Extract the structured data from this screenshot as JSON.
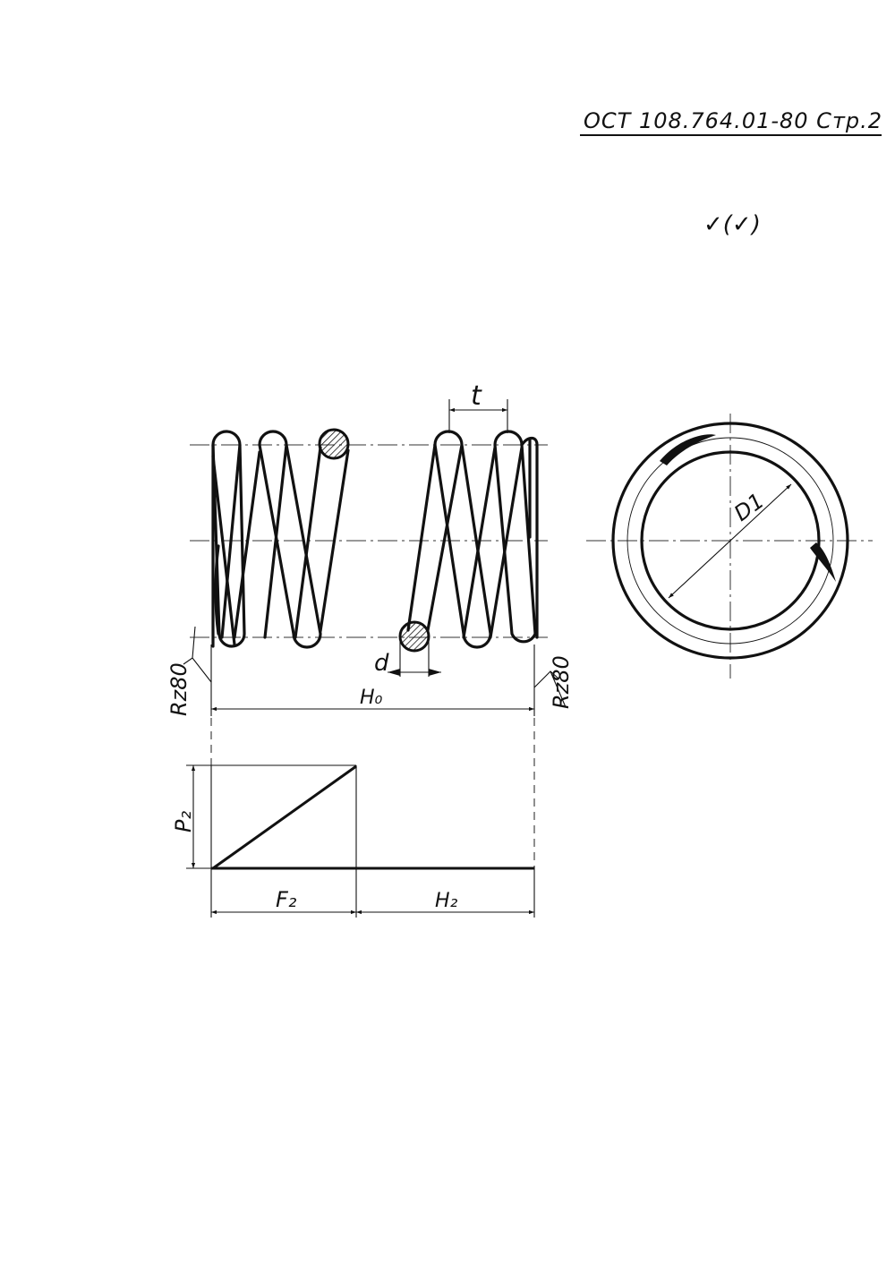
{
  "header": {
    "designation": "ОСТ 108.764.01-80 Стр.2"
  },
  "roughness": {
    "general_mark": "✓(✓)",
    "left_end": "Rz80",
    "right_end": "Rz80"
  },
  "spring_view": {
    "pitch_label": "t",
    "wire_diameter_label": "d",
    "free_length_label": "H₀"
  },
  "end_view": {
    "diameter_label": "D1"
  },
  "force_diagram": {
    "force_label": "P₂",
    "deflection_label": "F₂",
    "loaded_length_label": "H₂"
  }
}
